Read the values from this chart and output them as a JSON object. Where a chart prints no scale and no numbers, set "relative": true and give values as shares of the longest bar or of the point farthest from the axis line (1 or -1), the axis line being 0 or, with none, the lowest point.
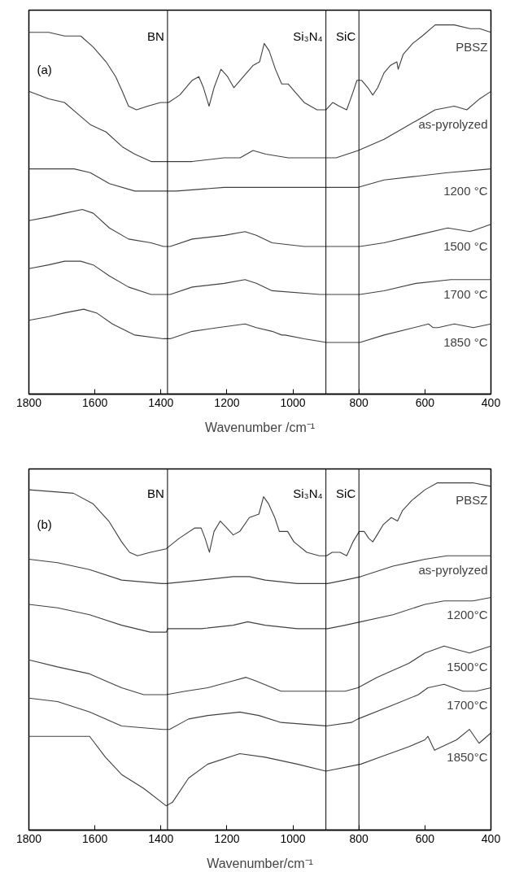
{
  "chart_data": [
    {
      "type": "line",
      "relative": true,
      "xlabel": "Wavenumber /cm⁻¹",
      "xlim": [
        1800,
        400
      ],
      "xticks": [
        1800,
        1600,
        1400,
        1200,
        1000,
        800,
        600,
        400
      ],
      "tick_labels": "x",
      "grid": false,
      "legend": false,
      "marker": "none",
      "line_style": "solid",
      "annotations": [
        "(a)"
      ],
      "ref_lines": [
        {
          "axis": "x",
          "value": 1380,
          "label": "BN",
          "color": "#000000"
        },
        {
          "axis": "x",
          "value": 900,
          "label": "Si₃N₄",
          "color": "#000000"
        },
        {
          "axis": "x",
          "value": 800,
          "label": "SiC",
          "color": "#000000"
        }
      ],
      "series": [
        {
          "name": "PBSZ",
          "color": "#404040",
          "x": [
            1800,
            1740,
            1692,
            1643,
            1605,
            1566,
            1537,
            1517,
            1498,
            1474,
            1440,
            1401,
            1377,
            1343,
            1305,
            1285,
            1271,
            1254,
            1239,
            1218,
            1198,
            1179,
            1150,
            1121,
            1101,
            1087,
            1072,
            1053,
            1034,
            1014,
            995,
            966,
            927,
            900,
            879,
            860,
            837,
            821,
            806,
            792,
            773,
            758,
            743,
            724,
            705,
            685,
            681,
            666,
            637,
            608,
            569,
            511,
            463,
            434,
            400
          ],
          "values": [
            0.98,
            0.98,
            0.97,
            0.97,
            0.94,
            0.9,
            0.86,
            0.82,
            0.78,
            0.77,
            0.78,
            0.79,
            0.79,
            0.81,
            0.85,
            0.86,
            0.83,
            0.78,
            0.83,
            0.88,
            0.86,
            0.83,
            0.86,
            0.89,
            0.9,
            0.95,
            0.93,
            0.88,
            0.84,
            0.84,
            0.82,
            0.79,
            0.77,
            0.77,
            0.79,
            0.78,
            0.77,
            0.81,
            0.85,
            0.85,
            0.83,
            0.81,
            0.83,
            0.87,
            0.89,
            0.9,
            0.88,
            0.92,
            0.95,
            0.97,
            1.0,
            1.0,
            0.99,
            0.99,
            0.98
          ]
        },
        {
          "name": "as-pyrolyzed",
          "color": "#404040",
          "x": [
            1800,
            1740,
            1692,
            1653,
            1614,
            1566,
            1517,
            1479,
            1430,
            1382,
            1305,
            1208,
            1160,
            1121,
            1082,
            1014,
            918,
            869,
            802,
            724,
            666,
            627,
            569,
            511,
            473,
            434,
            400
          ],
          "values": [
            0.82,
            0.8,
            0.79,
            0.76,
            0.73,
            0.71,
            0.67,
            0.65,
            0.63,
            0.63,
            0.63,
            0.64,
            0.64,
            0.66,
            0.65,
            0.64,
            0.64,
            0.64,
            0.66,
            0.69,
            0.72,
            0.74,
            0.77,
            0.78,
            0.77,
            0.8,
            0.82
          ]
        },
        {
          "name": "1200 °C",
          "color": "#404040",
          "x": [
            1800,
            1740,
            1663,
            1614,
            1556,
            1479,
            1353,
            1208,
            1126,
            1063,
            918,
            802,
            724,
            627,
            531,
            400
          ],
          "values": [
            0.61,
            0.61,
            0.61,
            0.6,
            0.57,
            0.55,
            0.55,
            0.56,
            0.56,
            0.56,
            0.56,
            0.56,
            0.58,
            0.59,
            0.6,
            0.61
          ]
        },
        {
          "name": "1500 °C",
          "color": "#404040",
          "x": [
            1800,
            1740,
            1692,
            1638,
            1605,
            1556,
            1498,
            1430,
            1392,
            1372,
            1305,
            1208,
            1145,
            1111,
            1063,
            966,
            869,
            821,
            797,
            724,
            627,
            531,
            463,
            400
          ],
          "values": [
            0.47,
            0.48,
            0.49,
            0.5,
            0.49,
            0.45,
            0.42,
            0.41,
            0.4,
            0.4,
            0.42,
            0.43,
            0.44,
            0.43,
            0.41,
            0.4,
            0.4,
            0.4,
            0.4,
            0.41,
            0.43,
            0.45,
            0.44,
            0.46
          ]
        },
        {
          "name": "1700 °C",
          "color": "#404040",
          "x": [
            1800,
            1740,
            1692,
            1643,
            1605,
            1556,
            1498,
            1430,
            1387,
            1372,
            1305,
            1208,
            1145,
            1111,
            1063,
            918,
            831,
            797,
            724,
            627,
            521,
            463,
            400
          ],
          "values": [
            0.34,
            0.35,
            0.36,
            0.36,
            0.35,
            0.32,
            0.29,
            0.27,
            0.27,
            0.27,
            0.29,
            0.3,
            0.31,
            0.3,
            0.28,
            0.27,
            0.27,
            0.27,
            0.28,
            0.3,
            0.31,
            0.31,
            0.31
          ]
        },
        {
          "name": "1850 °C",
          "color": "#404040",
          "x": [
            1800,
            1740,
            1692,
            1634,
            1595,
            1547,
            1479,
            1392,
            1372,
            1305,
            1227,
            1145,
            1111,
            1063,
            1034,
            1024,
            966,
            898,
            831,
            797,
            724,
            589,
            575,
            560,
            511,
            453,
            400
          ],
          "values": [
            0.2,
            0.21,
            0.22,
            0.23,
            0.22,
            0.19,
            0.16,
            0.15,
            0.15,
            0.17,
            0.18,
            0.19,
            0.18,
            0.17,
            0.16,
            0.16,
            0.15,
            0.14,
            0.14,
            0.14,
            0.16,
            0.19,
            0.18,
            0.18,
            0.19,
            0.18,
            0.19
          ]
        }
      ]
    },
    {
      "type": "line",
      "relative": true,
      "xlabel": "Wavenumber/cm⁻¹",
      "xlim": [
        1800,
        400
      ],
      "xticks": [
        1800,
        1600,
        1400,
        1200,
        1000,
        800,
        600,
        400
      ],
      "tick_labels": "x",
      "grid": false,
      "legend": false,
      "marker": "none",
      "line_style": "solid",
      "annotations": [
        "(b)"
      ],
      "ref_lines": [
        {
          "axis": "x",
          "value": 1380,
          "label": "BN",
          "color": "#000000"
        },
        {
          "axis": "x",
          "value": 900,
          "label": "Si₃N₄",
          "color": "#000000"
        },
        {
          "axis": "x",
          "value": 800,
          "label": "SiC",
          "color": "#000000"
        }
      ],
      "series": [
        {
          "name": "PBSZ",
          "color": "#404040",
          "x": [
            1800,
            1665,
            1606,
            1558,
            1519,
            1495,
            1471,
            1432,
            1384,
            1345,
            1297,
            1278,
            1266,
            1253,
            1239,
            1220,
            1200,
            1181,
            1161,
            1132,
            1103,
            1089,
            1074,
            1055,
            1041,
            1016,
            997,
            958,
            920,
            898,
            881,
            857,
            837,
            818,
            799,
            784,
            770,
            758,
            745,
            726,
            702,
            683,
            668,
            639,
            600,
            562,
            504,
            455,
            400
          ],
          "values": [
            0.98,
            0.97,
            0.94,
            0.89,
            0.83,
            0.8,
            0.79,
            0.8,
            0.81,
            0.84,
            0.87,
            0.87,
            0.84,
            0.8,
            0.86,
            0.89,
            0.87,
            0.85,
            0.86,
            0.9,
            0.91,
            0.96,
            0.94,
            0.9,
            0.86,
            0.86,
            0.83,
            0.8,
            0.79,
            0.79,
            0.8,
            0.8,
            0.79,
            0.83,
            0.86,
            0.86,
            0.84,
            0.83,
            0.85,
            0.88,
            0.9,
            0.89,
            0.92,
            0.95,
            0.98,
            1.0,
            1.0,
            1.0,
            0.99
          ]
        },
        {
          "name": "as-pyrolyzed",
          "color": "#404040",
          "x": [
            1800,
            1713,
            1616,
            1519,
            1398,
            1384,
            1278,
            1181,
            1132,
            1084,
            987,
            895,
            842,
            794,
            697,
            600,
            533,
            455,
            400
          ],
          "values": [
            0.78,
            0.77,
            0.75,
            0.72,
            0.71,
            0.71,
            0.72,
            0.73,
            0.73,
            0.72,
            0.71,
            0.71,
            0.72,
            0.73,
            0.76,
            0.78,
            0.79,
            0.79,
            0.79
          ]
        },
        {
          "name": "1200°C",
          "color": "#404040",
          "x": [
            1800,
            1713,
            1616,
            1519,
            1432,
            1384,
            1379,
            1278,
            1181,
            1137,
            1084,
            987,
            895,
            842,
            794,
            697,
            600,
            542,
            455,
            400
          ],
          "values": [
            0.65,
            0.64,
            0.62,
            0.59,
            0.57,
            0.57,
            0.58,
            0.58,
            0.59,
            0.6,
            0.59,
            0.58,
            0.58,
            0.59,
            0.6,
            0.62,
            0.65,
            0.66,
            0.66,
            0.67
          ]
        },
        {
          "name": "1500°C",
          "color": "#404040",
          "x": [
            1800,
            1713,
            1616,
            1568,
            1519,
            1452,
            1384,
            1326,
            1258,
            1181,
            1142,
            1113,
            1036,
            987,
            900,
            842,
            803,
            745,
            649,
            600,
            542,
            504,
            465,
            400
          ],
          "values": [
            0.49,
            0.47,
            0.45,
            0.43,
            0.41,
            0.39,
            0.39,
            0.4,
            0.41,
            0.43,
            0.44,
            0.43,
            0.4,
            0.4,
            0.4,
            0.4,
            0.41,
            0.44,
            0.48,
            0.51,
            0.53,
            0.52,
            0.51,
            0.53
          ]
        },
        {
          "name": "1700°C",
          "color": "#404040",
          "x": [
            1800,
            1713,
            1616,
            1519,
            1394,
            1374,
            1316,
            1258,
            1161,
            1103,
            1036,
            900,
            823,
            803,
            697,
            620,
            591,
            542,
            484,
            445,
            400
          ],
          "values": [
            0.38,
            0.37,
            0.34,
            0.3,
            0.29,
            0.29,
            0.32,
            0.33,
            0.34,
            0.33,
            0.31,
            0.3,
            0.31,
            0.32,
            0.36,
            0.39,
            0.41,
            0.42,
            0.4,
            0.4,
            0.41
          ]
        },
        {
          "name": "1850°C",
          "color": "#404040",
          "x": [
            1800,
            1713,
            1616,
            1568,
            1519,
            1452,
            1384,
            1365,
            1316,
            1258,
            1161,
            1084,
            987,
            900,
            794,
            736,
            649,
            600,
            591,
            571,
            504,
            465,
            436,
            400
          ],
          "values": [
            0.27,
            0.27,
            0.27,
            0.21,
            0.16,
            0.12,
            0.07,
            0.08,
            0.15,
            0.19,
            0.22,
            0.21,
            0.19,
            0.17,
            0.19,
            0.21,
            0.24,
            0.26,
            0.27,
            0.23,
            0.26,
            0.29,
            0.25,
            0.28
          ]
        }
      ]
    }
  ]
}
